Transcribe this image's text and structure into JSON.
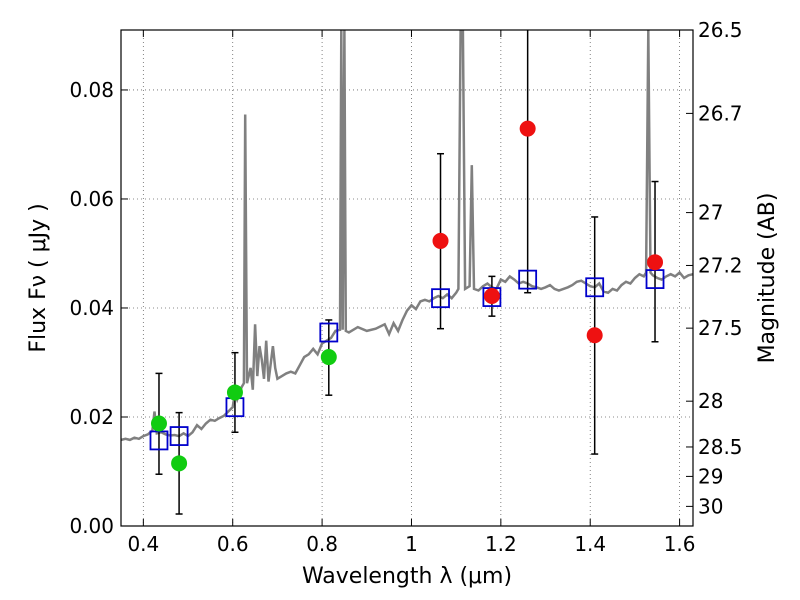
{
  "chart_data": {
    "type": "scatter",
    "title": "",
    "xlabel": "Wavelength  λ (μm)",
    "ylabel": "Flux  Fν  ( μJy )",
    "y2label": "Magnitude (AB)",
    "xlim": [
      0.35,
      1.63
    ],
    "ylim": [
      0.0,
      0.091
    ],
    "grid": true,
    "x_ticks": [
      0.4,
      0.6,
      0.8,
      1.0,
      1.2,
      1.4,
      1.6
    ],
    "x_tick_labels": [
      "0.4",
      "0.6",
      "0.8",
      "1",
      "1.2",
      "1.4",
      "1.6"
    ],
    "y_ticks": [
      0.0,
      0.02,
      0.04,
      0.06,
      0.08
    ],
    "y_tick_labels": [
      "0.00",
      "0.02",
      "0.04",
      "0.06",
      "0.08"
    ],
    "y2_ticks": [
      {
        "label": "26.5",
        "flux": 0.091
      },
      {
        "label": "26.7",
        "flux": 0.0757
      },
      {
        "label": "27",
        "flux": 0.0575
      },
      {
        "label": "27.2",
        "flux": 0.0478
      },
      {
        "label": "27.5",
        "flux": 0.0363
      },
      {
        "label": "28",
        "flux": 0.0229
      },
      {
        "label": "28.5",
        "flux": 0.0145
      },
      {
        "label": "29",
        "flux": 0.0091
      },
      {
        "label": "30",
        "flux": 0.0036
      }
    ],
    "series": [
      {
        "type": "line",
        "color": "#808080",
        "points": [
          [
            0.35,
            0.0158
          ],
          [
            0.36,
            0.016
          ],
          [
            0.37,
            0.0158
          ],
          [
            0.38,
            0.0162
          ],
          [
            0.39,
            0.016
          ],
          [
            0.4,
            0.0165
          ],
          [
            0.41,
            0.0168
          ],
          [
            0.42,
            0.0175
          ],
          [
            0.425,
            0.021
          ],
          [
            0.43,
            0.017
          ],
          [
            0.44,
            0.0172
          ],
          [
            0.45,
            0.0168
          ],
          [
            0.46,
            0.0166
          ],
          [
            0.47,
            0.0167
          ],
          [
            0.48,
            0.0165
          ],
          [
            0.49,
            0.017
          ],
          [
            0.5,
            0.0165
          ],
          [
            0.51,
            0.0172
          ],
          [
            0.52,
            0.0185
          ],
          [
            0.53,
            0.0178
          ],
          [
            0.54,
            0.0188
          ],
          [
            0.55,
            0.0195
          ],
          [
            0.56,
            0.0193
          ],
          [
            0.57,
            0.0198
          ],
          [
            0.58,
            0.0202
          ],
          [
            0.59,
            0.021
          ],
          [
            0.6,
            0.0218
          ],
          [
            0.605,
            0.0245
          ],
          [
            0.61,
            0.0232
          ],
          [
            0.62,
            0.0255
          ],
          [
            0.625,
            0.0262
          ],
          [
            0.628,
            0.0755
          ],
          [
            0.632,
            0.0262
          ],
          [
            0.64,
            0.029
          ],
          [
            0.645,
            0.025
          ],
          [
            0.65,
            0.037
          ],
          [
            0.655,
            0.0275
          ],
          [
            0.66,
            0.033
          ],
          [
            0.665,
            0.0305
          ],
          [
            0.67,
            0.027
          ],
          [
            0.675,
            0.034
          ],
          [
            0.68,
            0.0265
          ],
          [
            0.69,
            0.033
          ],
          [
            0.695,
            0.029
          ],
          [
            0.7,
            0.027
          ],
          [
            0.72,
            0.028
          ],
          [
            0.73,
            0.0283
          ],
          [
            0.74,
            0.028
          ],
          [
            0.75,
            0.0295
          ],
          [
            0.76,
            0.031
          ],
          [
            0.77,
            0.0315
          ],
          [
            0.78,
            0.0325
          ],
          [
            0.79,
            0.0315
          ],
          [
            0.8,
            0.0335
          ],
          [
            0.81,
            0.034
          ],
          [
            0.82,
            0.0345
          ],
          [
            0.83,
            0.0358
          ],
          [
            0.84,
            0.036
          ],
          [
            0.843,
            0.091
          ],
          [
            0.846,
            0.036
          ],
          [
            0.85,
            0.091
          ],
          [
            0.853,
            0.0358
          ],
          [
            0.86,
            0.0355
          ],
          [
            0.88,
            0.0365
          ],
          [
            0.9,
            0.0358
          ],
          [
            0.92,
            0.0362
          ],
          [
            0.94,
            0.037
          ],
          [
            0.95,
            0.0352
          ],
          [
            0.96,
            0.0372
          ],
          [
            0.97,
            0.0358
          ],
          [
            0.98,
            0.0378
          ],
          [
            0.99,
            0.0395
          ],
          [
            1.0,
            0.0405
          ],
          [
            1.01,
            0.0398
          ],
          [
            1.02,
            0.0412
          ],
          [
            1.03,
            0.0415
          ],
          [
            1.04,
            0.0412
          ],
          [
            1.05,
            0.0418
          ],
          [
            1.06,
            0.0422
          ],
          [
            1.07,
            0.0418
          ],
          [
            1.08,
            0.0425
          ],
          [
            1.09,
            0.0418
          ],
          [
            1.1,
            0.0428
          ],
          [
            1.105,
            0.0435
          ],
          [
            1.11,
            0.091
          ],
          [
            1.115,
            0.091
          ],
          [
            1.12,
            0.0435
          ],
          [
            1.13,
            0.044
          ],
          [
            1.135,
            0.0662
          ],
          [
            1.14,
            0.0435
          ],
          [
            1.15,
            0.0432
          ],
          [
            1.16,
            0.044
          ],
          [
            1.17,
            0.0445
          ],
          [
            1.18,
            0.0438
          ],
          [
            1.19,
            0.0435
          ],
          [
            1.2,
            0.0452
          ],
          [
            1.21,
            0.0448
          ],
          [
            1.22,
            0.0458
          ],
          [
            1.23,
            0.0452
          ],
          [
            1.24,
            0.0445
          ],
          [
            1.25,
            0.0448
          ],
          [
            1.26,
            0.0445
          ],
          [
            1.27,
            0.044
          ],
          [
            1.28,
            0.0438
          ],
          [
            1.29,
            0.0435
          ],
          [
            1.3,
            0.0438
          ],
          [
            1.31,
            0.0442
          ],
          [
            1.32,
            0.0435
          ],
          [
            1.33,
            0.0432
          ],
          [
            1.34,
            0.0435
          ],
          [
            1.35,
            0.0438
          ],
          [
            1.36,
            0.0442
          ],
          [
            1.37,
            0.0448
          ],
          [
            1.38,
            0.045
          ],
          [
            1.39,
            0.0445
          ],
          [
            1.4,
            0.044
          ],
          [
            1.41,
            0.0438
          ],
          [
            1.42,
            0.0445
          ],
          [
            1.43,
            0.043
          ],
          [
            1.44,
            0.0428
          ],
          [
            1.45,
            0.0435
          ],
          [
            1.46,
            0.0432
          ],
          [
            1.47,
            0.0442
          ],
          [
            1.48,
            0.0448
          ],
          [
            1.49,
            0.0445
          ],
          [
            1.5,
            0.0455
          ],
          [
            1.51,
            0.0462
          ],
          [
            1.52,
            0.0458
          ],
          [
            1.525,
            0.0465
          ],
          [
            1.53,
            0.091
          ],
          [
            1.535,
            0.0465
          ],
          [
            1.54,
            0.046
          ],
          [
            1.55,
            0.0455
          ],
          [
            1.56,
            0.0452
          ],
          [
            1.57,
            0.0458
          ],
          [
            1.58,
            0.0462
          ],
          [
            1.59,
            0.0458
          ],
          [
            1.6,
            0.0465
          ],
          [
            1.61,
            0.0455
          ],
          [
            1.62,
            0.046
          ],
          [
            1.63,
            0.0462
          ]
        ]
      },
      {
        "type": "squares",
        "color": "#0000cc",
        "points": [
          [
            0.435,
            0.0157
          ],
          [
            0.48,
            0.0165
          ],
          [
            0.605,
            0.0218
          ],
          [
            0.815,
            0.0355
          ],
          [
            1.065,
            0.0418
          ],
          [
            1.18,
            0.042
          ],
          [
            1.26,
            0.0452
          ],
          [
            1.41,
            0.0438
          ],
          [
            1.545,
            0.0453
          ]
        ]
      },
      {
        "type": "points",
        "color": "#11cc11",
        "points": [
          {
            "x": 0.435,
            "y": 0.0188,
            "err_lo": 0.0095,
            "err_hi": 0.028
          },
          {
            "x": 0.48,
            "y": 0.0115,
            "err_lo": 0.0022,
            "err_hi": 0.0208
          },
          {
            "x": 0.605,
            "y": 0.0245,
            "err_lo": 0.0172,
            "err_hi": 0.0318
          },
          {
            "x": 0.815,
            "y": 0.031,
            "err_lo": 0.024,
            "err_hi": 0.0378
          }
        ]
      },
      {
        "type": "points",
        "color": "#ee1111",
        "points": [
          {
            "x": 1.065,
            "y": 0.0523,
            "err_lo": 0.0362,
            "err_hi": 0.0683
          },
          {
            "x": 1.18,
            "y": 0.0422,
            "err_lo": 0.0385,
            "err_hi": 0.0458
          },
          {
            "x": 1.26,
            "y": 0.0729,
            "err_lo": 0.0428,
            "err_hi": 0.091
          },
          {
            "x": 1.41,
            "y": 0.035,
            "err_lo": 0.0132,
            "err_hi": 0.0567
          },
          {
            "x": 1.545,
            "y": 0.0484,
            "err_lo": 0.0338,
            "err_hi": 0.0632
          }
        ]
      }
    ]
  }
}
